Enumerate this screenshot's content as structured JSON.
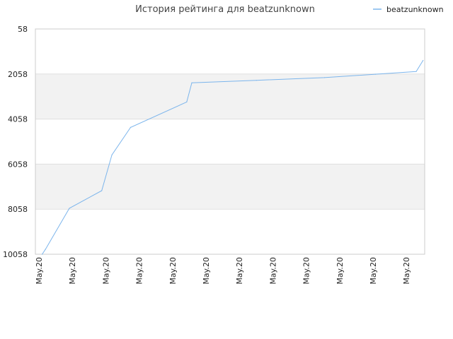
{
  "chart_data": {
    "type": "line",
    "title": "История рейтинга для beatzunknown",
    "xlabel": "",
    "ylabel": "",
    "y_inverted": true,
    "ylim": [
      58,
      10058
    ],
    "y_ticks": [
      "58",
      "2058",
      "4058",
      "6058",
      "8058",
      "10058"
    ],
    "x_ticks": [
      "May.20",
      "May.20",
      "May.20",
      "May.20",
      "May.20",
      "May.20",
      "May.20",
      "May.20",
      "May.20",
      "May.20",
      "May.20",
      "May.20"
    ],
    "grid": "horizontal bands",
    "legend_position": "top-right",
    "series": [
      {
        "name": "beatzunknown",
        "color": "#7cb5ec",
        "x": [
          0.2,
          0.3,
          1.0,
          1.95,
          2.25,
          2.8,
          4.45,
          4.6,
          6.5,
          8.5,
          10.0,
          11.2,
          11.4
        ],
        "y": [
          10058,
          9830,
          8018,
          7238,
          5648,
          4428,
          3298,
          2448,
          2338,
          2218,
          2068,
          1948,
          1458
        ]
      }
    ]
  },
  "colors": {
    "band": "#f2f2f2",
    "gridline": "#e0e0e0",
    "axis": "#cccccc",
    "series": "#7cb5ec"
  }
}
